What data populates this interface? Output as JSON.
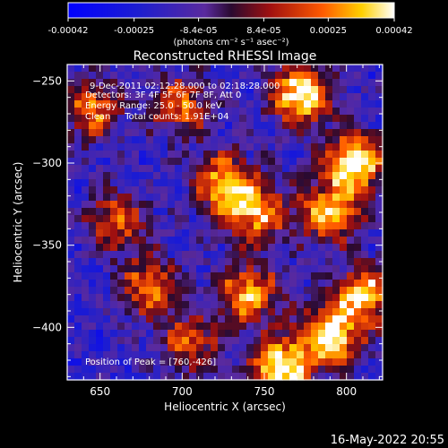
{
  "chart_data": {
    "type": "heatmap",
    "title": "Reconstructed RHESSI Image",
    "xlabel": "Heliocentric X (arcsec)",
    "ylabel": "Heliocentric Y (arcsec)",
    "xlim": [
      630,
      822
    ],
    "ylim": [
      -432,
      -240
    ],
    "x_ticks": [
      650,
      700,
      750,
      800
    ],
    "y_ticks": [
      -250,
      -300,
      -350,
      -400
    ],
    "colorbar": {
      "ticks": [
        "-0.00042",
        "-0.00025",
        "-8.4e-05",
        "8.4e-05",
        "0.00025",
        "0.00042"
      ],
      "tick_values": [
        -0.00042,
        -0.00025,
        -8.4e-05,
        8.4e-05,
        0.00025,
        0.00042
      ],
      "range": [
        -0.00042,
        0.00042
      ],
      "units": "(photons cm⁻² s⁻¹ asec⁻²)"
    },
    "annotations": {
      "time": "9-Dec-2011 02:12:28.000 to 02:18:28.000",
      "detectors": "Detectors: 3F 4F 5F 6F 7F 8F, Att 0",
      "energy": "Energy Range: 25.0 - 50.0 keV",
      "method": "Clean     Total counts: 1.91E+04",
      "peak": "Position of Peak = [760,-426]"
    },
    "grid": false,
    "hot_spots": [
      {
        "x": 772,
        "y": -258,
        "value": 0.0004
      },
      {
        "x": 805,
        "y": -300,
        "value": 0.00042
      },
      {
        "x": 790,
        "y": -330,
        "value": 0.0003
      },
      {
        "x": 745,
        "y": -330,
        "value": 0.00028
      },
      {
        "x": 725,
        "y": -312,
        "value": 0.00026
      },
      {
        "x": 760,
        "y": -426,
        "value": 0.00042
      },
      {
        "x": 790,
        "y": -405,
        "value": 0.0004
      },
      {
        "x": 740,
        "y": -380,
        "value": 0.00028
      },
      {
        "x": 812,
        "y": -380,
        "value": 0.0003
      },
      {
        "x": 680,
        "y": -375,
        "value": 0.0002
      },
      {
        "x": 660,
        "y": -335,
        "value": 0.00018
      },
      {
        "x": 645,
        "y": -268,
        "value": 0.0002
      },
      {
        "x": 700,
        "y": -265,
        "value": 0.00018
      },
      {
        "x": 705,
        "y": -410,
        "value": 0.00014
      }
    ]
  },
  "footer": {
    "date": "16-May-2022 20:55"
  }
}
